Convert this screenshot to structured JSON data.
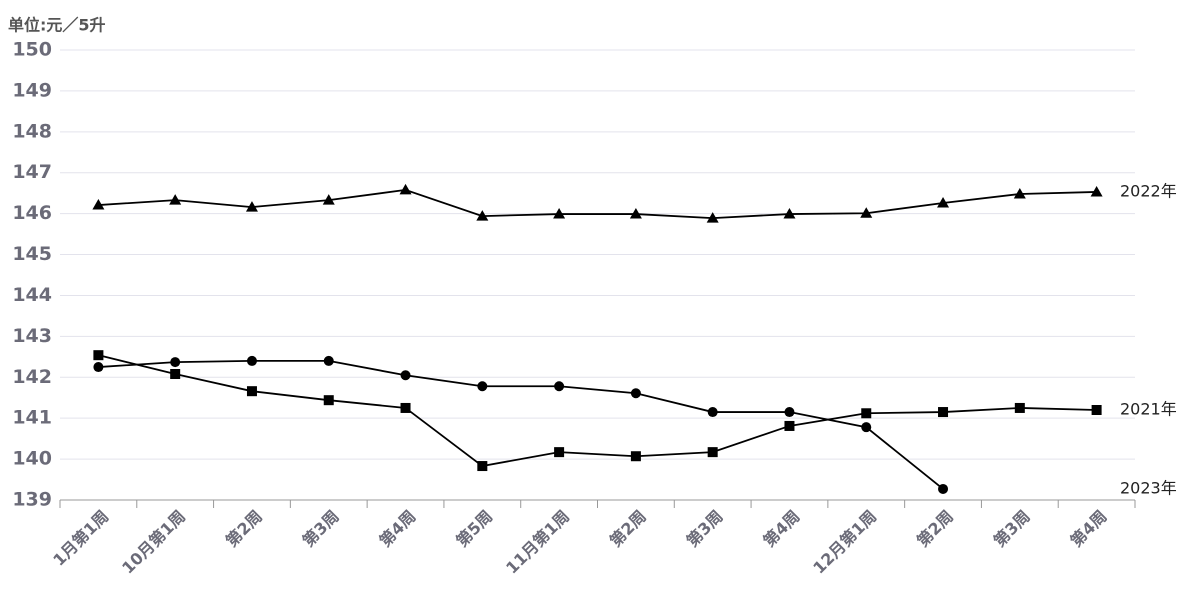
{
  "chart_data": {
    "type": "line",
    "unit_label": "单位:元／5升",
    "categories": [
      "1月第1周",
      "10月第1周",
      "第2周",
      "第3周",
      "第4周",
      "第5周",
      "11月第1周",
      "第2周",
      "第3周",
      "第4周",
      "12月第1周",
      "第2周",
      "第3周",
      "第4周"
    ],
    "series": [
      {
        "name": "2022年",
        "color": "#000000",
        "marker": "triangle",
        "values": [
          146.21,
          146.33,
          146.16,
          146.33,
          146.58,
          145.94,
          145.99,
          145.99,
          145.89,
          145.99,
          146.01,
          146.26,
          146.48,
          146.53
        ]
      },
      {
        "name": "2021年",
        "color": "#000000",
        "marker": "square",
        "values": [
          142.54,
          142.08,
          141.66,
          141.44,
          141.25,
          139.83,
          140.17,
          140.07,
          140.17,
          140.81,
          141.12,
          141.15,
          141.25,
          141.2
        ]
      },
      {
        "name": "2023年",
        "color": "#000000",
        "marker": "circle",
        "values": [
          142.25,
          142.37,
          142.4,
          142.4,
          142.05,
          141.78,
          141.78,
          141.61,
          141.15,
          141.15,
          140.78,
          139.27,
          null,
          null
        ]
      }
    ],
    "ylim": [
      139,
      150
    ],
    "yticks": [
      139,
      140,
      141,
      142,
      143,
      144,
      145,
      146,
      147,
      148,
      149,
      150
    ],
    "grid": true
  }
}
